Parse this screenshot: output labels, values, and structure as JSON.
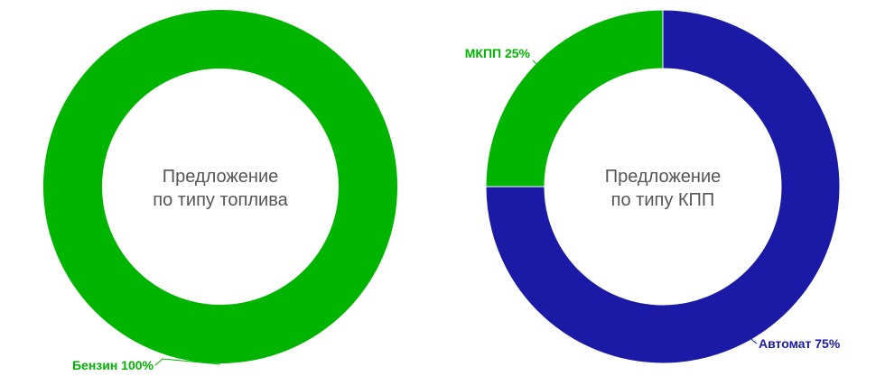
{
  "chart_data": [
    {
      "type": "pie",
      "variant": "donut",
      "title_lines": [
        "Предложение",
        "по типу топлива"
      ],
      "slices": [
        {
          "name": "Бензин",
          "value": 100,
          "label": "Бензин 100%",
          "color": "#00b400"
        }
      ]
    },
    {
      "type": "pie",
      "variant": "donut",
      "title_lines": [
        "Предложение",
        "по типу КПП"
      ],
      "slices": [
        {
          "name": "Автомат",
          "value": 75,
          "label": "Автомат 75%",
          "color": "#1a1aa6"
        },
        {
          "name": "МКПП",
          "value": 25,
          "label": "МКПП 25%",
          "color": "#00b400"
        }
      ]
    }
  ]
}
